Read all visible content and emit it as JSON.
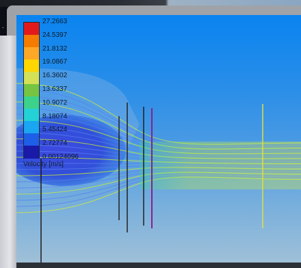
{
  "legend": {
    "title": "Velocity [m/s]",
    "values": [
      "27.2663",
      "24.5397",
      "21.8132",
      "19.0867",
      "16.3602",
      "13.6337",
      "10.9072",
      "8.18074",
      "5.45424",
      "2.72774",
      "0.00124096"
    ],
    "colors": [
      "#e31a1c",
      "#f57c00",
      "#ffa726",
      "#ffd600",
      "#d4e157",
      "#76c442",
      "#3dd28a",
      "#24d1d6",
      "#1aa6f0",
      "#1e5fe8",
      "#1a1aa8"
    ]
  },
  "colors": {
    "background_top": "#0a84f0",
    "background_bottom": "#9fc0d8",
    "streamline_slow": "#5a7df0",
    "streamline_fast": "#d6f032"
  }
}
